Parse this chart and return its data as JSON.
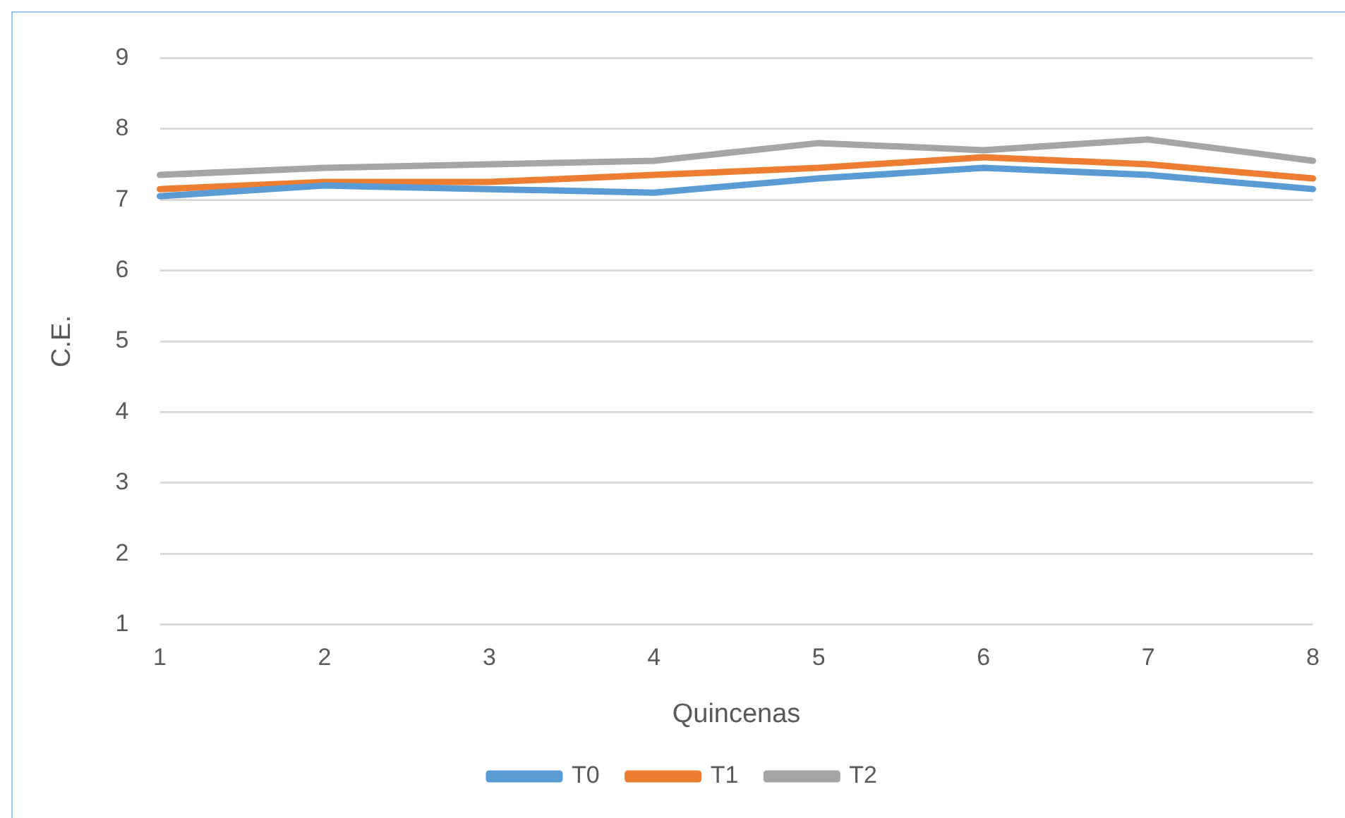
{
  "chart_data": {
    "type": "line",
    "xlabel": "Quincenas",
    "ylabel": "C.E.",
    "categories": [
      "1",
      "2",
      "3",
      "4",
      "5",
      "6",
      "7",
      "8"
    ],
    "series": [
      {
        "name": "T0",
        "color": "#5b9bd5",
        "values": [
          7.05,
          7.2,
          7.15,
          7.1,
          7.3,
          7.45,
          7.35,
          7.15
        ]
      },
      {
        "name": "T1",
        "color": "#ed7d31",
        "values": [
          7.15,
          7.25,
          7.25,
          7.35,
          7.45,
          7.6,
          7.5,
          7.3
        ]
      },
      {
        "name": "T2",
        "color": "#a5a5a5",
        "values": [
          7.35,
          7.45,
          7.5,
          7.55,
          7.8,
          7.7,
          7.85,
          7.55
        ]
      }
    ],
    "ylim": [
      1,
      9
    ],
    "yticks": [
      1,
      2,
      3,
      4,
      5,
      6,
      7,
      8,
      9
    ],
    "grid": "y",
    "legend": "bottom",
    "marker": "none"
  }
}
